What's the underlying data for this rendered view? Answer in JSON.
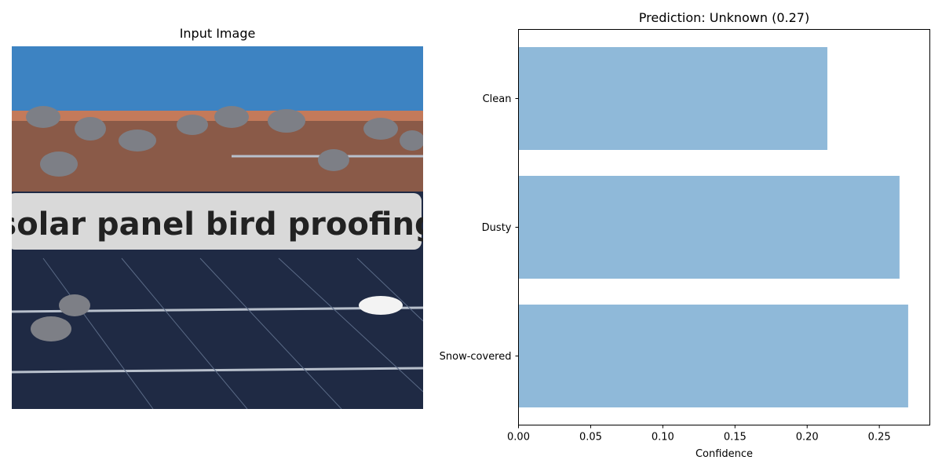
{
  "left_panel": {
    "title": "Input Image",
    "image_caption": "solar panel bird proofing"
  },
  "colors": {
    "bar": "#8fb9d9",
    "sky": "#3d83c2",
    "panel": "#1f2a44",
    "banner": "#d9d9d9"
  },
  "chart_data": {
    "type": "bar",
    "orientation": "horizontal",
    "title": "Prediction: Unknown (0.27)",
    "xlabel": "Confidence",
    "ylabel": "",
    "categories": [
      "Clean",
      "Dusty",
      "Snow-covered"
    ],
    "values": [
      0.214,
      0.264,
      0.27
    ],
    "xlim": [
      0,
      0.285
    ],
    "xticks": [
      0.0,
      0.05,
      0.1,
      0.15,
      0.2,
      0.25
    ],
    "xtick_labels": [
      "0.00",
      "0.05",
      "0.10",
      "0.15",
      "0.20",
      "0.25"
    ],
    "grid": false
  }
}
